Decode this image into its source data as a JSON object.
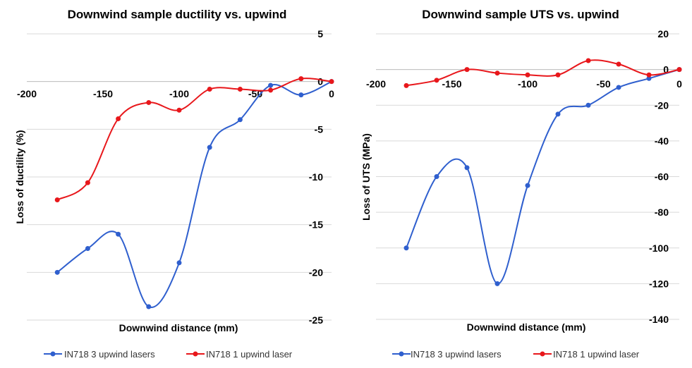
{
  "chart_data": [
    {
      "type": "line",
      "title": "Downwind sample ductility vs. upwind",
      "xlabel": "Downwind distance (mm)",
      "ylabel": "Loss of ductility (%)",
      "xlim": [
        -200,
        0
      ],
      "ylim": [
        -25,
        5
      ],
      "xticks": [
        "-200",
        "-150",
        "-100",
        "-50",
        "0"
      ],
      "yticks": [
        "5",
        "0",
        "-5",
        "-10",
        "-15",
        "-20",
        "-25"
      ],
      "grid": true,
      "legend_position": "bottom",
      "series": [
        {
          "name": "IN718 3 upwind lasers",
          "color": "#2f5fce",
          "x": [
            -180,
            -160,
            -140,
            -120,
            -100,
            -80,
            -60,
            -40,
            -20,
            0
          ],
          "y": [
            -20,
            -17.5,
            -16,
            -23.6,
            -19,
            -6.9,
            -4,
            -0.4,
            -1.4,
            0
          ]
        },
        {
          "name": "IN718 1 upwind laser",
          "color": "#e8171b",
          "x": [
            -180,
            -160,
            -140,
            -120,
            -100,
            -80,
            -60,
            -40,
            -20,
            0
          ],
          "y": [
            -12.4,
            -10.6,
            -3.9,
            -2.2,
            -3,
            -0.8,
            -0.8,
            -0.9,
            0.3,
            0
          ]
        }
      ]
    },
    {
      "type": "line",
      "title": "Downwind sample UTS vs. upwind",
      "xlabel": "Downwind distance (mm)",
      "ylabel": "Loss of UTS (MPa)",
      "xlim": [
        -200,
        0
      ],
      "ylim": [
        -140,
        20
      ],
      "xticks": [
        "-200",
        "-150",
        "-100",
        "-50",
        "0"
      ],
      "yticks": [
        "20",
        "0",
        "-20",
        "-40",
        "-60",
        "-80",
        "-100",
        "-120",
        "-140"
      ],
      "grid": true,
      "legend_position": "bottom",
      "series": [
        {
          "name": "IN718 3 upwind lasers",
          "color": "#2f5fce",
          "x": [
            -180,
            -160,
            -140,
            -120,
            -100,
            -80,
            -60,
            -40,
            -20,
            0
          ],
          "y": [
            -100,
            -60,
            -55,
            -120,
            -65,
            -25,
            -20,
            -10,
            -5,
            0
          ]
        },
        {
          "name": "IN718 1 upwind laser",
          "color": "#e8171b",
          "x": [
            -180,
            -160,
            -140,
            -120,
            -100,
            -80,
            -60,
            -40,
            -20,
            0
          ],
          "y": [
            -9,
            -6,
            0,
            -2,
            -3,
            -3,
            5,
            3,
            -3,
            0
          ]
        }
      ]
    }
  ]
}
